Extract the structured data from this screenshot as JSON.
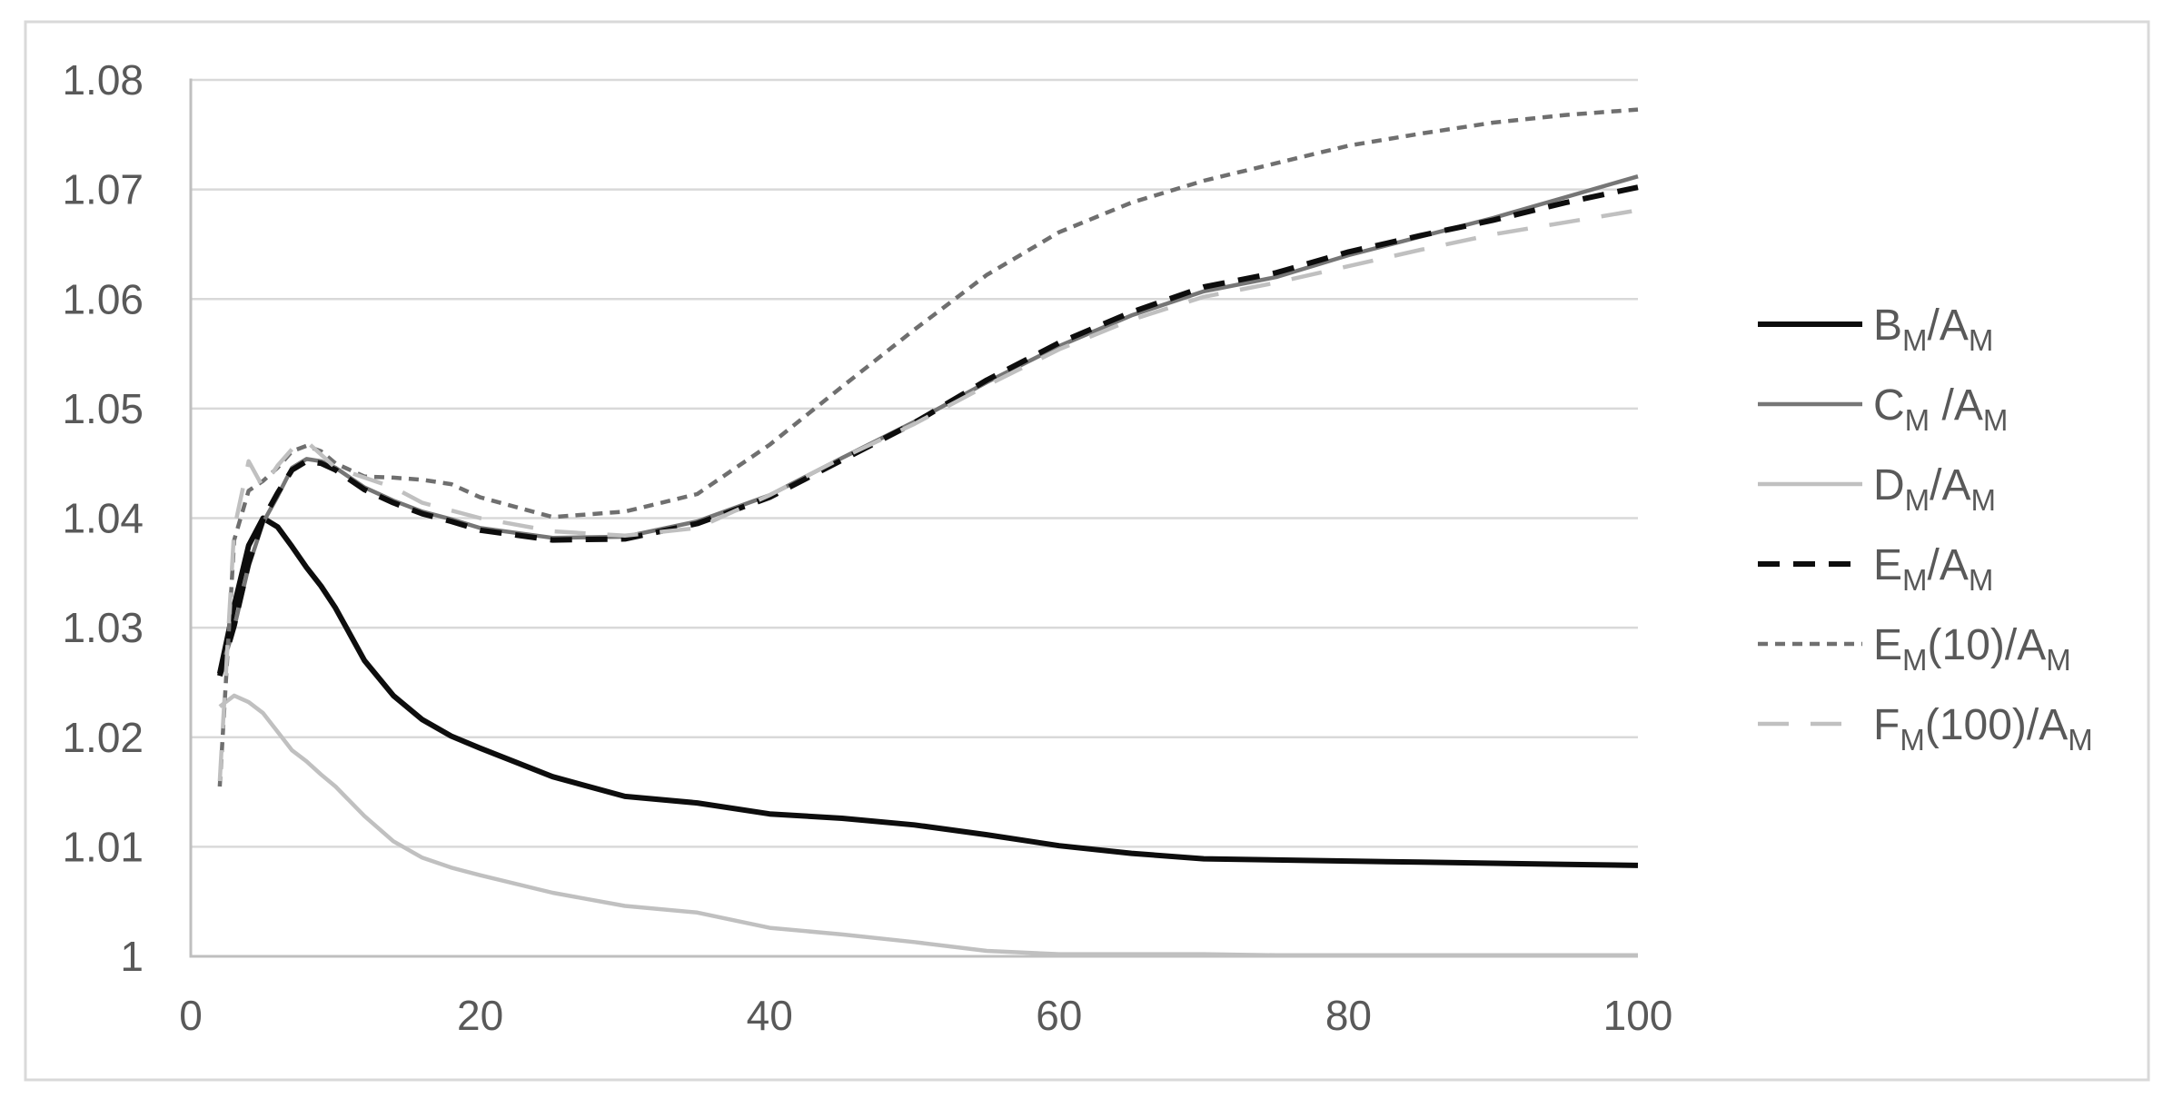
{
  "figure": {
    "background": "#ffffff",
    "border_color": "#d9d9d9",
    "text_color": "#595959",
    "gridline_color": "#d9d9d9",
    "axis_line_color": "#bfbfbf"
  },
  "chart_data": {
    "type": "line",
    "title": "",
    "xlabel": "",
    "ylabel": "",
    "grid": true,
    "legend_position": "right",
    "x_axis": {
      "min": 0,
      "max": 100,
      "ticks": [
        0,
        20,
        40,
        60,
        80,
        100
      ],
      "tick_labels": [
        "0",
        "20",
        "40",
        "60",
        "80",
        "100"
      ]
    },
    "y_axis": {
      "min": 1.0,
      "max": 1.08,
      "ticks": [
        1.0,
        1.01,
        1.02,
        1.03,
        1.04,
        1.05,
        1.06,
        1.07,
        1.08
      ],
      "tick_labels": [
        "1",
        "1.01",
        "1.02",
        "1.03",
        "1.04",
        "1.05",
        "1.06",
        "1.07",
        "1.08"
      ]
    },
    "series": [
      {
        "id": "bm",
        "label": "BM/AM",
        "label_segments": [
          {
            "t": "B"
          },
          {
            "t": "M",
            "sub": true
          },
          {
            "t": "/A"
          },
          {
            "t": "M",
            "sub": true
          }
        ],
        "color": "#0d0d0d",
        "style": "solid",
        "width": 6,
        "points": [
          [
            2,
            1.0258
          ],
          [
            3,
            1.032
          ],
          [
            4,
            1.0375
          ],
          [
            5,
            1.04
          ],
          [
            6,
            1.0392
          ],
          [
            7,
            1.0374
          ],
          [
            8,
            1.0355
          ],
          [
            9,
            1.0338
          ],
          [
            10,
            1.0318
          ],
          [
            12,
            1.027
          ],
          [
            14,
            1.0238
          ],
          [
            16,
            1.0216
          ],
          [
            18,
            1.0201
          ],
          [
            20,
            1.019
          ],
          [
            25,
            1.0164
          ],
          [
            30,
            1.0146
          ],
          [
            35,
            1.014
          ],
          [
            40,
            1.013
          ],
          [
            45,
            1.0126
          ],
          [
            50,
            1.012
          ],
          [
            55,
            1.0111
          ],
          [
            60,
            1.0101
          ],
          [
            65,
            1.0094
          ],
          [
            70,
            1.0089
          ],
          [
            75,
            1.0088
          ],
          [
            80,
            1.0087
          ],
          [
            85,
            1.0086
          ],
          [
            90,
            1.0085
          ],
          [
            95,
            1.0084
          ],
          [
            100,
            1.0083
          ]
        ]
      },
      {
        "id": "cm",
        "label": "CM /AM",
        "label_segments": [
          {
            "t": "C"
          },
          {
            "t": "M",
            "sub": true
          },
          {
            "t": " /A"
          },
          {
            "t": "M",
            "sub": true
          }
        ],
        "color": "#767676",
        "style": "solid",
        "width": 4.5,
        "points": [
          [
            2,
            1.0258
          ],
          [
            3,
            1.03
          ],
          [
            4,
            1.0356
          ],
          [
            5,
            1.0396
          ],
          [
            6,
            1.042
          ],
          [
            7,
            1.0446
          ],
          [
            8,
            1.0454
          ],
          [
            9,
            1.0452
          ],
          [
            10,
            1.0446
          ],
          [
            12,
            1.0428
          ],
          [
            14,
            1.0416
          ],
          [
            16,
            1.0406
          ],
          [
            18,
            1.0399
          ],
          [
            20,
            1.0391
          ],
          [
            25,
            1.0382
          ],
          [
            30,
            1.0383
          ],
          [
            35,
            1.0397
          ],
          [
            40,
            1.0421
          ],
          [
            45,
            1.0455
          ],
          [
            50,
            1.0488
          ],
          [
            55,
            1.0524
          ],
          [
            60,
            1.0557
          ],
          [
            65,
            1.0585
          ],
          [
            70,
            1.0607
          ],
          [
            75,
            1.062
          ],
          [
            80,
            1.064
          ],
          [
            85,
            1.0657
          ],
          [
            90,
            1.0674
          ],
          [
            95,
            1.0693
          ],
          [
            100,
            1.0712
          ]
        ]
      },
      {
        "id": "dm",
        "label": "DM/AM",
        "label_segments": [
          {
            "t": "D"
          },
          {
            "t": "M",
            "sub": true
          },
          {
            "t": "/A"
          },
          {
            "t": "M",
            "sub": true
          }
        ],
        "color": "#c0c0c0",
        "style": "solid",
        "width": 4.5,
        "points": [
          [
            2,
            1.0228
          ],
          [
            3,
            1.0238
          ],
          [
            4,
            1.0232
          ],
          [
            5,
            1.0222
          ],
          [
            6,
            1.0205
          ],
          [
            7,
            1.0188
          ],
          [
            8,
            1.0178
          ],
          [
            9,
            1.0166
          ],
          [
            10,
            1.0155
          ],
          [
            12,
            1.0128
          ],
          [
            14,
            1.0105
          ],
          [
            16,
            1.009
          ],
          [
            18,
            1.0081
          ],
          [
            20,
            1.0074
          ],
          [
            25,
            1.0058
          ],
          [
            30,
            1.0046
          ],
          [
            35,
            1.004
          ],
          [
            40,
            1.0026
          ],
          [
            45,
            1.002
          ],
          [
            50,
            1.0013
          ],
          [
            55,
            1.0005
          ],
          [
            60,
            1.0002
          ],
          [
            65,
            1.0002
          ],
          [
            70,
            1.0002
          ],
          [
            75,
            1.0001
          ],
          [
            80,
            1.0001
          ],
          [
            85,
            1.0001
          ],
          [
            90,
            1.0001
          ],
          [
            95,
            1.0001
          ],
          [
            100,
            1.0001
          ]
        ]
      },
      {
        "id": "em",
        "label": "EM/AM",
        "label_segments": [
          {
            "t": "E"
          },
          {
            "t": "M",
            "sub": true
          },
          {
            "t": "/A"
          },
          {
            "t": "M",
            "sub": true
          }
        ],
        "color": "#0d0d0d",
        "style": "dash",
        "width": 6,
        "points": [
          [
            2,
            1.0256
          ],
          [
            3,
            1.0302
          ],
          [
            4,
            1.0359
          ],
          [
            5,
            1.0399
          ],
          [
            6,
            1.0423
          ],
          [
            7,
            1.0444
          ],
          [
            8,
            1.0452
          ],
          [
            9,
            1.045
          ],
          [
            10,
            1.0444
          ],
          [
            12,
            1.0426
          ],
          [
            14,
            1.0414
          ],
          [
            16,
            1.0404
          ],
          [
            18,
            1.0397
          ],
          [
            20,
            1.0389
          ],
          [
            25,
            1.038
          ],
          [
            30,
            1.0381
          ],
          [
            35,
            1.0395
          ],
          [
            40,
            1.0419
          ],
          [
            45,
            1.0453
          ],
          [
            50,
            1.0487
          ],
          [
            55,
            1.0526
          ],
          [
            60,
            1.056
          ],
          [
            65,
            1.0588
          ],
          [
            70,
            1.0611
          ],
          [
            75,
            1.0624
          ],
          [
            80,
            1.0643
          ],
          [
            85,
            1.0658
          ],
          [
            90,
            1.0672
          ],
          [
            95,
            1.0688
          ],
          [
            100,
            1.0702
          ]
        ]
      },
      {
        "id": "em10",
        "label": "EM(10)/AM",
        "label_segments": [
          {
            "t": "E"
          },
          {
            "t": "M",
            "sub": true
          },
          {
            "t": "(10)/A"
          },
          {
            "t": "M",
            "sub": true
          }
        ],
        "color": "#6f6f6f",
        "style": "dot",
        "width": 4.5,
        "points": [
          [
            2,
            1.0155
          ],
          [
            3,
            1.038
          ],
          [
            4,
            1.0425
          ],
          [
            5,
            1.0434
          ],
          [
            6,
            1.0446
          ],
          [
            7,
            1.0461
          ],
          [
            8,
            1.0466
          ],
          [
            9,
            1.0461
          ],
          [
            10,
            1.045
          ],
          [
            12,
            1.0438
          ],
          [
            14,
            1.0437
          ],
          [
            16,
            1.0435
          ],
          [
            18,
            1.0431
          ],
          [
            20,
            1.0419
          ],
          [
            25,
            1.0401
          ],
          [
            30,
            1.0406
          ],
          [
            35,
            1.0422
          ],
          [
            40,
            1.0467
          ],
          [
            45,
            1.052
          ],
          [
            50,
            1.0572
          ],
          [
            55,
            1.0622
          ],
          [
            60,
            1.0661
          ],
          [
            65,
            1.0688
          ],
          [
            70,
            1.0708
          ],
          [
            75,
            1.0724
          ],
          [
            80,
            1.074
          ],
          [
            85,
            1.0751
          ],
          [
            90,
            1.0761
          ],
          [
            95,
            1.0768
          ],
          [
            100,
            1.0773
          ]
        ]
      },
      {
        "id": "fm100",
        "label": "FM(100)/AM",
        "label_segments": [
          {
            "t": "F"
          },
          {
            "t": "M",
            "sub": true
          },
          {
            "t": "(100)/A"
          },
          {
            "t": "M",
            "sub": true
          }
        ],
        "color": "#c0c0c0",
        "style": "longdash",
        "width": 4.5,
        "points": [
          [
            2,
            1.016
          ],
          [
            3,
            1.039
          ],
          [
            4,
            1.0452
          ],
          [
            5,
            1.0428
          ],
          [
            6,
            1.0448
          ],
          [
            7,
            1.0463
          ],
          [
            8,
            1.047
          ],
          [
            9,
            1.0458
          ],
          [
            10,
            1.0446
          ],
          [
            12,
            1.0437
          ],
          [
            14,
            1.0428
          ],
          [
            16,
            1.0414
          ],
          [
            18,
            1.0407
          ],
          [
            20,
            1.04
          ],
          [
            25,
            1.0388
          ],
          [
            30,
            1.0384
          ],
          [
            35,
            1.0391
          ],
          [
            40,
            1.0421
          ],
          [
            45,
            1.0455
          ],
          [
            50,
            1.0486
          ],
          [
            55,
            1.0521
          ],
          [
            60,
            1.0554
          ],
          [
            65,
            1.0581
          ],
          [
            70,
            1.0602
          ],
          [
            75,
            1.0615
          ],
          [
            80,
            1.063
          ],
          [
            85,
            1.0645
          ],
          [
            90,
            1.0659
          ],
          [
            95,
            1.067
          ],
          [
            100,
            1.0681
          ]
        ]
      }
    ]
  }
}
